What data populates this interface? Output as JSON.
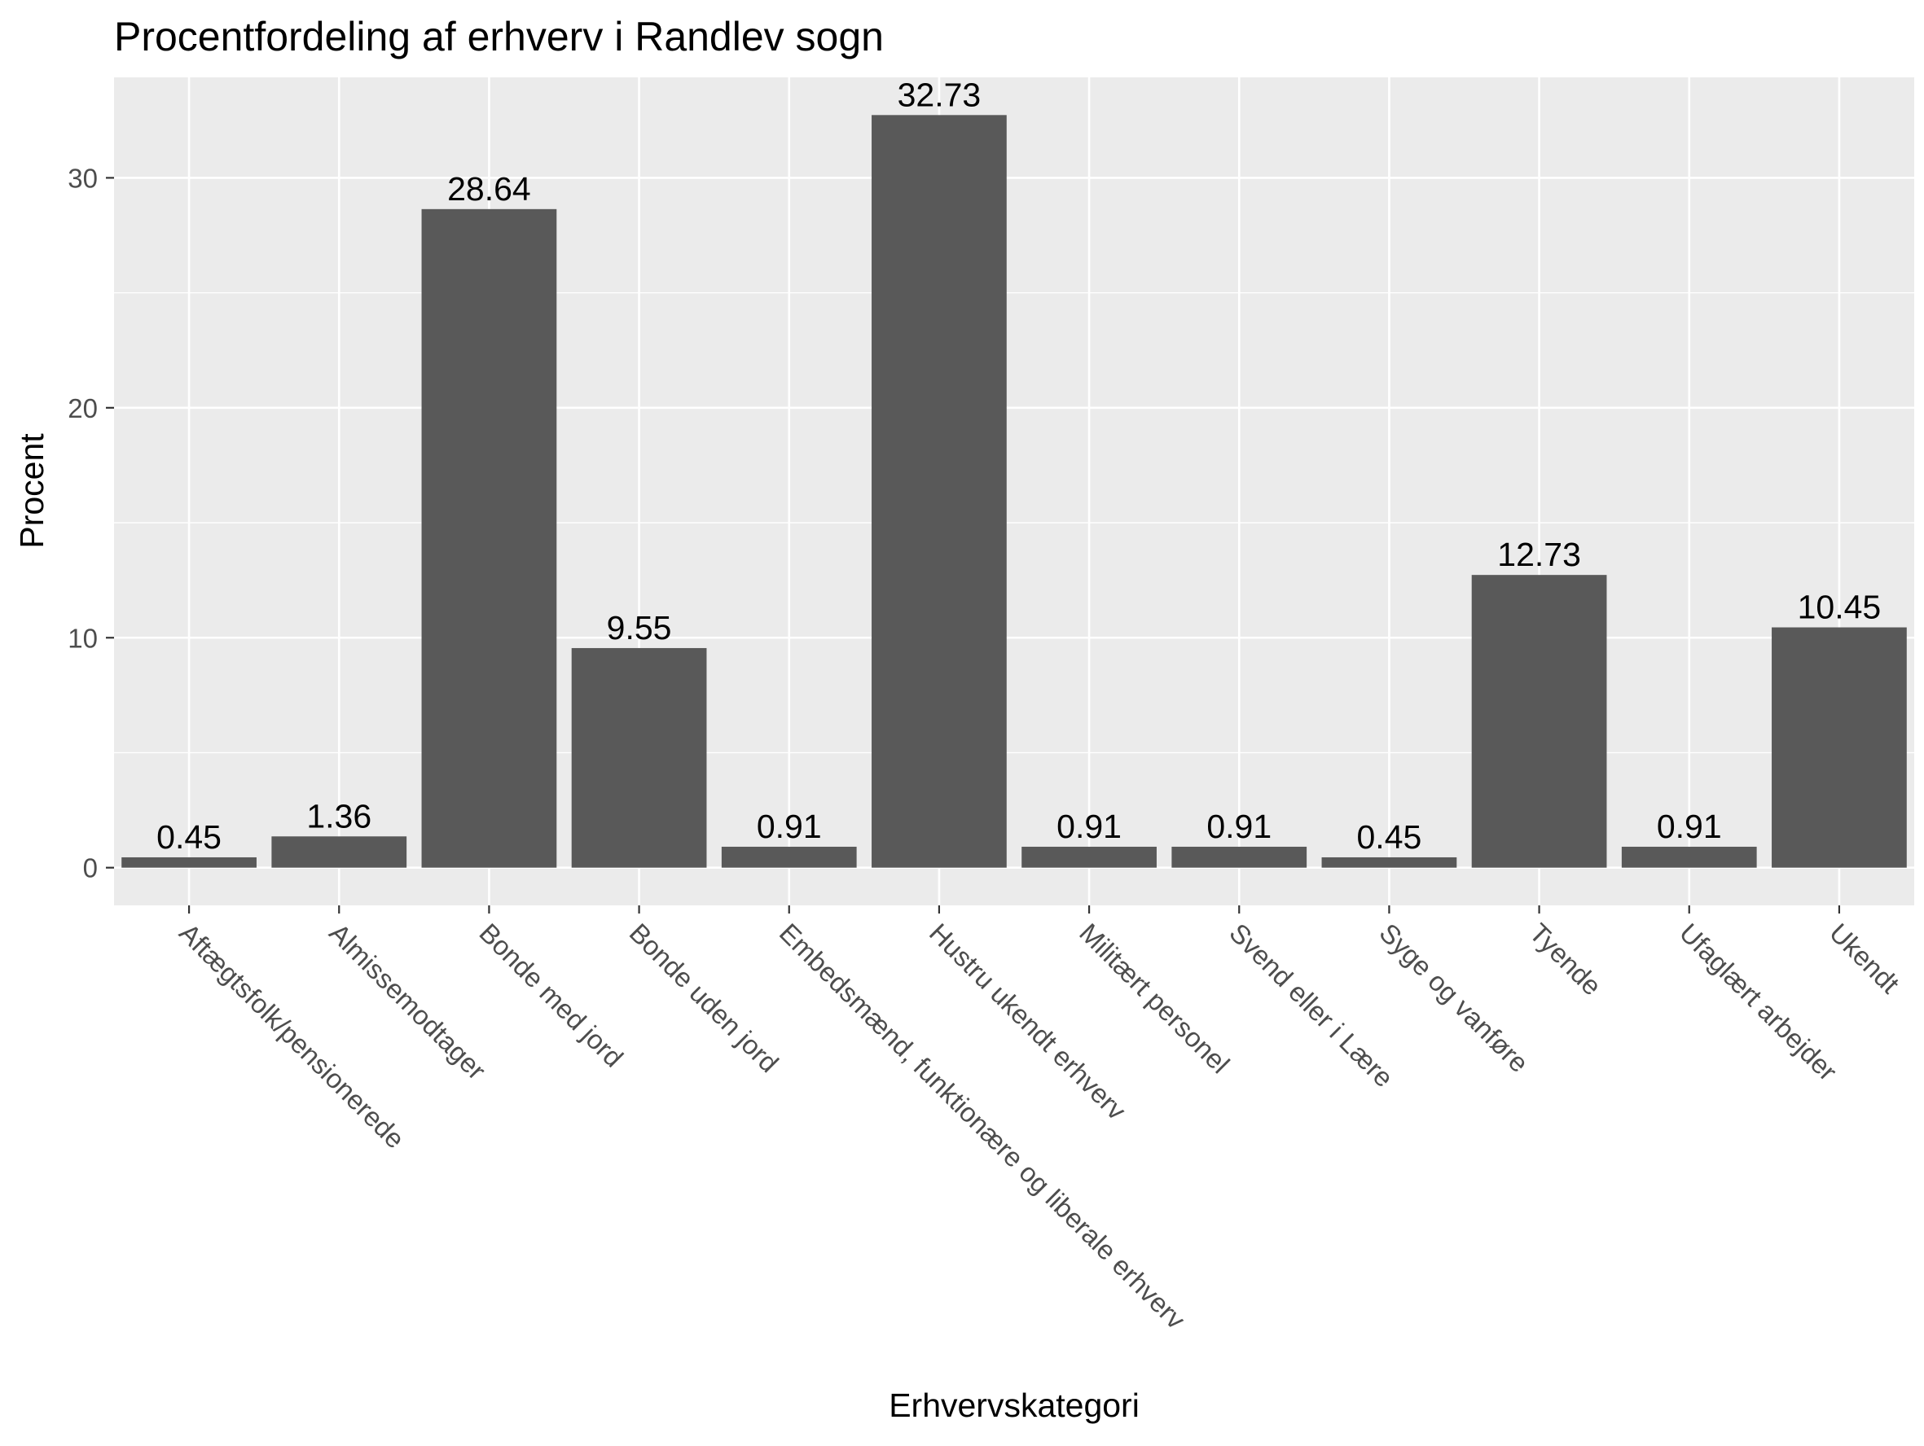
{
  "chart_data": {
    "type": "bar",
    "title": "Procentfordeling af erhverv i Randlev sogn",
    "xlabel": "Erhvervskategori",
    "ylabel": "Procent",
    "categories": [
      "Aftægtsfolk/pensionerede",
      "Almissemodtager",
      "Bonde med jord",
      "Bonde uden jord",
      "Embedsmænd, funktionære og liberale erhverv",
      "Hustru ukendt erhverv",
      "Militært personel",
      "Svend eller i Lære",
      "Syge og vanføre",
      "Tyende",
      "Ufaglært arbejder",
      "Ukendt"
    ],
    "values": [
      0.45,
      1.36,
      28.64,
      9.55,
      0.91,
      32.73,
      0.91,
      0.91,
      0.45,
      12.73,
      0.91,
      10.45
    ],
    "data_labels": [
      "0.45",
      "1.36",
      "28.64",
      "9.55",
      "0.91",
      "32.73",
      "0.91",
      "0.91",
      "0.45",
      "12.73",
      "0.91",
      "10.45"
    ],
    "yticks": [
      0,
      10,
      20,
      30
    ],
    "ylim": [
      -1.64,
      34.37
    ],
    "grid": true,
    "legend": "none",
    "colors": {
      "panel": "#ebebeb",
      "bar": "#595959",
      "grid": "#ffffff",
      "tick_text": "#4d4d4d",
      "tick_mark": "#333333"
    }
  }
}
